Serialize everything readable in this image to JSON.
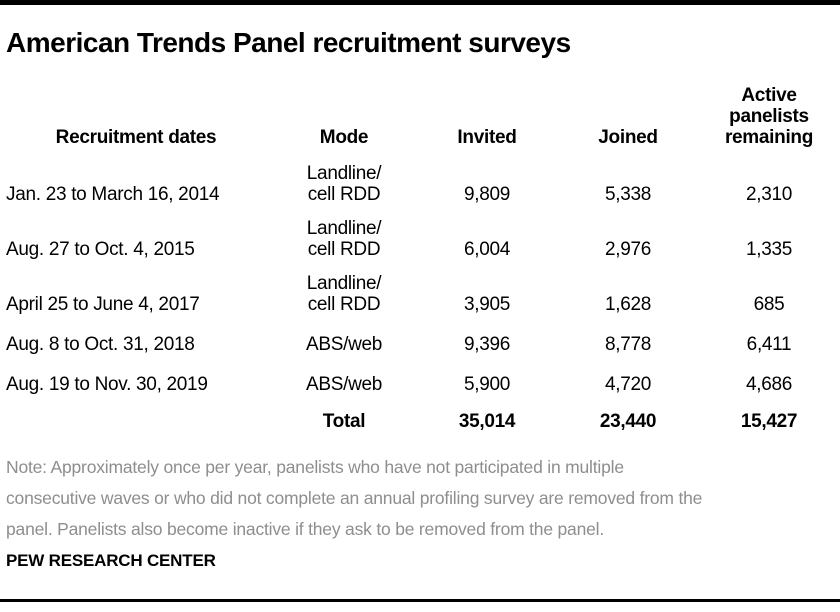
{
  "title": "American Trends Panel recruitment surveys",
  "table": {
    "columns": {
      "dates": "Recruitment dates",
      "mode": "Mode",
      "invited": "Invited",
      "joined": "Joined",
      "remaining": "Active panelists remaining"
    },
    "rows": [
      {
        "dates": "Jan. 23 to March 16, 2014",
        "mode": [
          "Landline/",
          "cell RDD"
        ],
        "invited": "9,809",
        "joined": "5,338",
        "remaining": "2,310"
      },
      {
        "dates": "Aug. 27 to Oct. 4, 2015",
        "mode": [
          "Landline/",
          "cell RDD"
        ],
        "invited": "6,004",
        "joined": "2,976",
        "remaining": "1,335"
      },
      {
        "dates": "April 25 to June 4, 2017",
        "mode": [
          "Landline/",
          "cell RDD"
        ],
        "invited": "3,905",
        "joined": "1,628",
        "remaining": "685"
      },
      {
        "dates": "Aug. 8 to Oct. 31, 2018",
        "mode": [
          "ABS/web"
        ],
        "invited": "9,396",
        "joined": "8,778",
        "remaining": "6,411"
      },
      {
        "dates": "Aug. 19 to Nov. 30, 2019",
        "mode": [
          "ABS/web"
        ],
        "invited": "5,900",
        "joined": "4,720",
        "remaining": "4,686"
      }
    ],
    "total": {
      "label": "Total",
      "invited": "35,014",
      "joined": "23,440",
      "remaining": "15,427"
    }
  },
  "note_lines": [
    "Note: Approximately once per year, panelists who have not participated in multiple",
    "consecutive waves or who did not complete an annual profiling survey are removed from the",
    "panel. Panelists also become inactive if they ask to be removed from the panel."
  ],
  "footer": "PEW RESEARCH CENTER",
  "colors": {
    "text": "#000000",
    "note_text": "#8e8e8e",
    "rule": "#000000",
    "background": "#ffffff"
  },
  "chart_data": {
    "type": "table",
    "title": "American Trends Panel recruitment surveys",
    "columns": [
      "Recruitment dates",
      "Mode",
      "Invited",
      "Joined",
      "Active panelists remaining"
    ],
    "rows": [
      [
        "Jan. 23 to March 16, 2014",
        "Landline/cell RDD",
        9809,
        5338,
        2310
      ],
      [
        "Aug. 27 to Oct. 4, 2015",
        "Landline/cell RDD",
        6004,
        2976,
        1335
      ],
      [
        "April 25 to June 4, 2017",
        "Landline/cell RDD",
        3905,
        1628,
        685
      ],
      [
        "Aug. 8 to Oct. 31, 2018",
        "ABS/web",
        9396,
        8778,
        6411
      ],
      [
        "Aug. 19 to Nov. 30, 2019",
        "ABS/web",
        5900,
        4720,
        4686
      ],
      [
        "",
        "Total",
        35014,
        23440,
        15427
      ]
    ],
    "note": "Note: Approximately once per year, panelists who have not participated in multiple consecutive waves or who did not complete an annual profiling survey are removed from the panel. Panelists also become inactive if they ask to be removed from the panel.",
    "source": "PEW RESEARCH CENTER"
  }
}
